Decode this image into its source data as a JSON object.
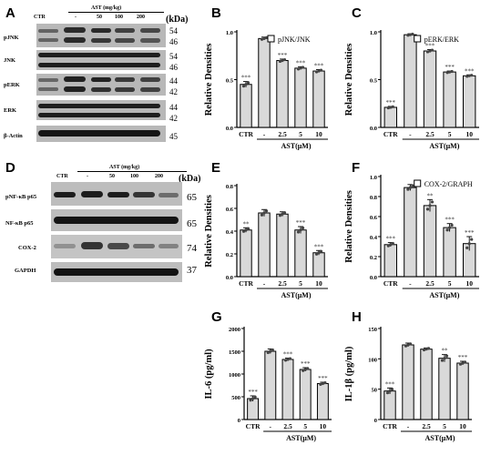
{
  "panel_a": {
    "letter": "A",
    "kda": "(kDa)",
    "group": "AST (mg/kg)",
    "lanes": [
      "CTR",
      "-",
      "50",
      "100",
      "200"
    ],
    "rows": [
      {
        "label": "pJNK",
        "mw": [
          "54",
          "46"
        ],
        "bands": 2
      },
      {
        "label": "JNK",
        "mw": [
          "54",
          "46"
        ],
        "bands": 2
      },
      {
        "label": "pERK",
        "mw": [
          "44",
          "42"
        ],
        "bands": 2
      },
      {
        "label": "ERK",
        "mw": [
          "44",
          "42"
        ],
        "bands": 2
      },
      {
        "label": "β-Actin",
        "mw": [
          "45"
        ],
        "bands": 1
      }
    ]
  },
  "panel_d": {
    "letter": "D",
    "kda": "(kDa)",
    "group": "AST (mg/kg)",
    "lanes": [
      "CTR",
      "-",
      "50",
      "100",
      "200"
    ],
    "rows": [
      {
        "label": "pNF-κB p65",
        "mw": [
          "65"
        ],
        "bands": 1
      },
      {
        "label": "NF-κB p65",
        "mw": [
          "65"
        ],
        "bands": 1
      },
      {
        "label": "COX-2",
        "mw": [
          "74"
        ],
        "bands": 1
      },
      {
        "label": "GAPDH",
        "mw": [
          "37"
        ],
        "bands": 1
      }
    ]
  },
  "chart_data": [
    {
      "id": "B",
      "type": "bar",
      "ylabel": "Relative Densities",
      "legend": "pJNK/JNK",
      "categories": [
        "CTR",
        "-",
        "2.5",
        "5",
        "10"
      ],
      "xgroup": "AST(μM)",
      "values": [
        0.45,
        0.93,
        0.7,
        0.62,
        0.59
      ],
      "errors": [
        0.03,
        0.015,
        0.015,
        0.015,
        0.015
      ],
      "sig": [
        "***",
        "",
        "***",
        "***",
        "***"
      ],
      "ylim": [
        0,
        1.0
      ],
      "yticks": [
        "0.0",
        "0.5",
        "1.0"
      ]
    },
    {
      "id": "C",
      "type": "bar",
      "ylabel": "Relative Densities",
      "legend": "pERK/ERK",
      "categories": [
        "CTR",
        "-",
        "2.5",
        "5",
        "10"
      ],
      "xgroup": "AST(μM)",
      "values": [
        0.21,
        0.97,
        0.8,
        0.58,
        0.54
      ],
      "errors": [
        0.01,
        0.01,
        0.015,
        0.01,
        0.01
      ],
      "sig": [
        "***",
        "",
        "***",
        "***",
        "***"
      ],
      "ylim": [
        0,
        1.0
      ],
      "yticks": [
        "0.0",
        "0.5",
        "1.0"
      ]
    },
    {
      "id": "E",
      "type": "bar",
      "ylabel": "Relative Densities",
      "legend": "",
      "categories": [
        "CTR",
        "-",
        "2.5",
        "5",
        "10"
      ],
      "xgroup": "AST(μM)",
      "values": [
        0.41,
        0.56,
        0.55,
        0.41,
        0.21
      ],
      "errors": [
        0.02,
        0.03,
        0.02,
        0.03,
        0.02
      ],
      "sig": [
        "**",
        "",
        "",
        "***",
        "***"
      ],
      "ylim": [
        0,
        0.8
      ],
      "yticks": [
        "0.0",
        "0.2",
        "0.4",
        "0.6",
        "0.8"
      ]
    },
    {
      "id": "F",
      "type": "bar",
      "ylabel": "Relative Densities",
      "legend": "COX-2/GRAPH",
      "categories": [
        "CTR",
        "-",
        "2.5",
        "5",
        "10"
      ],
      "xgroup": "AST(μM)",
      "values": [
        0.32,
        0.89,
        0.71,
        0.49,
        0.33
      ],
      "errors": [
        0.02,
        0.03,
        0.06,
        0.04,
        0.07
      ],
      "sig": [
        "***",
        "",
        "**",
        "***",
        "***"
      ],
      "ylim": [
        0,
        1.0
      ],
      "yticks": [
        "0.0",
        "0.2",
        "0.4",
        "0.6",
        "0.8",
        "1.0"
      ]
    },
    {
      "id": "G",
      "type": "bar",
      "ylabel": "IL-6 (pg/ml)",
      "legend": "",
      "categories": [
        "CTR",
        "-",
        "2.5",
        "5",
        "10"
      ],
      "xgroup": "AST(μM)",
      "values": [
        460,
        1500,
        1320,
        1100,
        790
      ],
      "errors": [
        60,
        50,
        30,
        40,
        30
      ],
      "sig": [
        "***",
        "",
        "***",
        "***",
        "***"
      ],
      "ylim": [
        0,
        2000
      ],
      "yticks": [
        "0",
        "500",
        "1000",
        "1500",
        "2000"
      ]
    },
    {
      "id": "H",
      "type": "bar",
      "ylabel": "IL-1β (pg/ml)",
      "legend": "",
      "categories": [
        "CTR",
        "-",
        "2.5",
        "5",
        "10"
      ],
      "xgroup": "AST(μM)",
      "values": [
        47,
        123,
        116,
        101,
        93
      ],
      "errors": [
        5,
        3,
        2,
        6,
        3
      ],
      "sig": [
        "***",
        "",
        "",
        "**",
        "***"
      ],
      "ylim": [
        0,
        150
      ],
      "yticks": [
        "0",
        "50",
        "100",
        "150"
      ]
    }
  ]
}
